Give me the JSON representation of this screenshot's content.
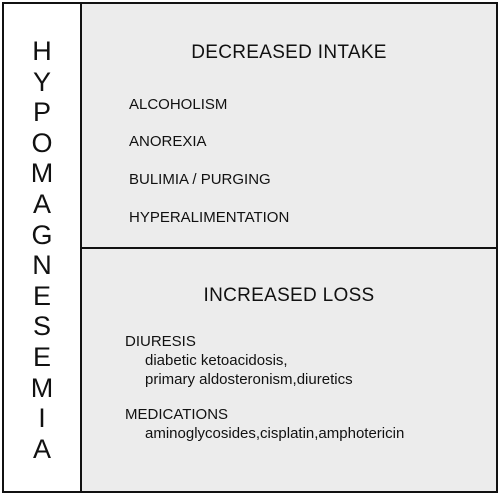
{
  "side_title_letters": [
    "H",
    "Y",
    "P",
    "O",
    "M",
    "A",
    "G",
    "N",
    "E",
    "S",
    "E",
    "M",
    "I",
    "A"
  ],
  "decreased_intake": {
    "heading": "DECREASED INTAKE",
    "items": [
      "ALCOHOLISM",
      "ANOREXIA",
      "BULIMIA / PURGING",
      "HYPERALIMENTATION"
    ]
  },
  "increased_loss": {
    "heading": "INCREASED LOSS",
    "groups": [
      {
        "title": "DIURESIS",
        "lines": [
          "diabetic ketoacidosis,",
          "primary aldosteronism,diuretics"
        ]
      },
      {
        "title": "MEDICATIONS",
        "lines": [
          "aminoglycosides,cisplatin,amphotericin"
        ]
      }
    ]
  }
}
